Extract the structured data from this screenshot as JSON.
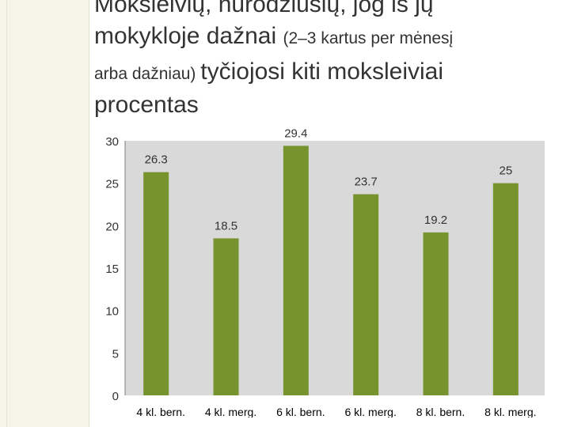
{
  "slide": {
    "title_parts": [
      {
        "text": "Moksleivių, nurodžiusių, jog iš jų",
        "size": "big"
      },
      {
        "text": "mokykloje dažnai ",
        "size": "big",
        "continues": [
          {
            "text": "(2–3 kartus per mėnesį",
            "size": "small"
          }
        ]
      },
      {
        "text": "arba dažniau) ",
        "size": "small",
        "continues": [
          {
            "text": "tyčiojosi kiti moksleiviai",
            "size": "big"
          }
        ]
      }
    ],
    "subtitle": "procentas"
  },
  "colors": {
    "bar": "#77932e",
    "plot_bg": "#d9d9d9",
    "page_bg": "#ffffff",
    "stripe": "#f6f4e9",
    "text": "#333333"
  },
  "chart_data": {
    "type": "bar",
    "categories": [
      "4 kl. bern.",
      "4 kl. merg.",
      "6 kl. bern.",
      "6 kl. merg.",
      "8 kl. bern.",
      "8 kl. merg."
    ],
    "values": [
      26.3,
      18.5,
      29.4,
      23.7,
      19.2,
      25
    ],
    "value_labels": [
      "26.3",
      "18.5",
      "29.4",
      "23.7",
      "19.2",
      "25"
    ],
    "ylim": [
      0,
      30
    ],
    "yticks": [
      0,
      5,
      10,
      15,
      20,
      25,
      30
    ],
    "grid": false,
    "title": "",
    "xlabel": "",
    "ylabel": ""
  }
}
